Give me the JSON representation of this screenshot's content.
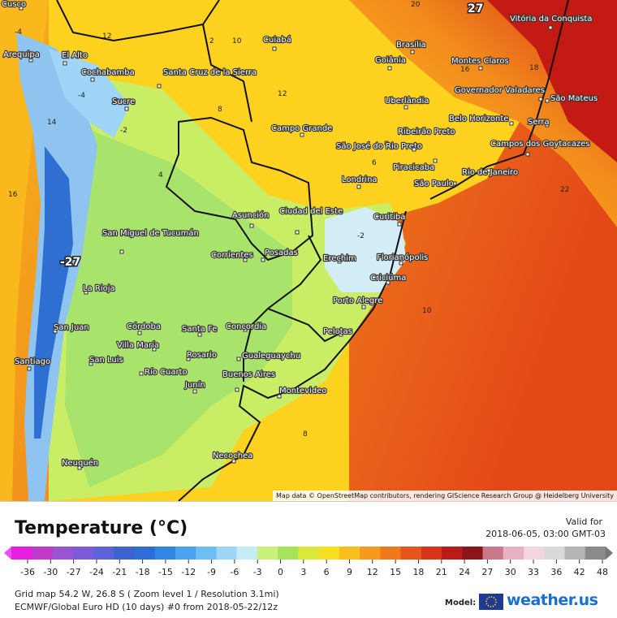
{
  "map": {
    "attribution": "Map data © OpenStreetMap contributors, rendering GIScience Research Group @ Heidelberg University",
    "extremes": [
      {
        "value": "27",
        "kind": "max"
      },
      {
        "value": "-27",
        "kind": "min"
      }
    ],
    "cities": [
      "Cusco",
      "Arequipa",
      "El Alto",
      "Cochabamba",
      "Santa Cruz de la Sierra",
      "Sucre",
      "Cuiabá",
      "Brasília",
      "Goiânia",
      "Vitória da Conquista",
      "Montes Claros",
      "Governador Valadares",
      "São Mateus",
      "Uberlândia",
      "Belo Horizonte",
      "Serra",
      "Campo Grande",
      "São José do Rio Preto",
      "Ribeirão Preto",
      "Campos dos Goytacazes",
      "Piracicaba",
      "Rio de Janeiro",
      "Londrina",
      "São Paulo",
      "Asunción",
      "Ciudad del Este",
      "Curitiba",
      "San Miguel de Tucumán",
      "Corrientes",
      "Posadas",
      "Erechim",
      "Florianópolis",
      "Criciúma",
      "La Rioja",
      "Porto Alegre",
      "San Juan",
      "Córdoba",
      "Santa Fe",
      "Concordia",
      "Pelotas",
      "Villa María",
      "Santiago",
      "San Luis",
      "Rosario",
      "Gualeguaychu",
      "Río Cuarto",
      "Buenos Aires",
      "Junín",
      "Montevideo",
      "Neuquén",
      "Necochea"
    ],
    "contour_labels": [
      "12",
      "2",
      "10",
      "12",
      "8",
      "-4",
      "-2",
      "14",
      "16",
      "10",
      "8",
      "20",
      "18",
      "16",
      "22",
      "-2",
      "4",
      "6",
      "-4"
    ],
    "colors": {
      "ocean_warm": "#e84a16",
      "land_warm": "#ffd21f",
      "land_mild": "#cfe95a",
      "land_cool": "#a8e07a",
      "cold": "#5aa0e8",
      "very_cold": "#1c4fb0",
      "hot": "#c41a14"
    }
  },
  "legend": {
    "title": "Temperature (°C)",
    "valid_label": "Valid for",
    "valid_time": "2018-06-05, 03:00 GMT-03",
    "ticks": [
      "-36",
      "-30",
      "-27",
      "-24",
      "-21",
      "-18",
      "-15",
      "-12",
      "-9",
      "-6",
      "-3",
      "0",
      "3",
      "6",
      "9",
      "12",
      "15",
      "18",
      "21",
      "24",
      "27",
      "30",
      "33",
      "36",
      "42",
      "48"
    ],
    "colors": [
      "#e81ee0",
      "#c23ac8",
      "#9a53d1",
      "#7d5bd6",
      "#5d62d8",
      "#3e62cf",
      "#2e6cd8",
      "#2f86e3",
      "#4ba3ef",
      "#70bdf4",
      "#9fd6f8",
      "#c8ebf8",
      "#c9f07a",
      "#a7e35a",
      "#dbe93a",
      "#f7e022",
      "#f9bf1e",
      "#f59a1d",
      "#ef7a1c",
      "#e6561a",
      "#d8361a",
      "#b81c1a",
      "#8e141b",
      "#c87a8a",
      "#e8b2c3",
      "#f2d6e2",
      "#d9d9d9",
      "#b5b5b5",
      "#8a8a8a"
    ]
  },
  "footer": {
    "grid_info": "Grid map 54.2 W, 26.8 S ( Zoom level 1 / Resolution 3.1mi)",
    "model_info": "ECMWF/Global Euro HD (10 days) #0 from 2018-05-22/12z",
    "model_label": "Model:",
    "brand": "weather.us"
  }
}
